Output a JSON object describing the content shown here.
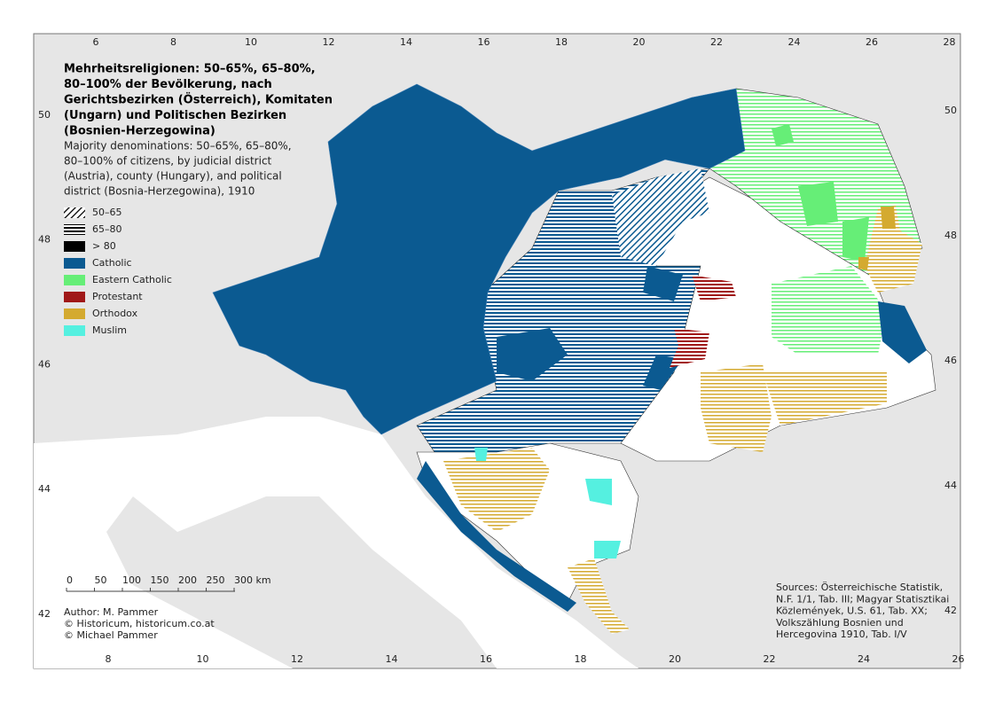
{
  "map": {
    "title_lines": [
      "Mehrheitsreligionen: 50–65%, 65–80%,",
      "80–100% der Bevölkerung, nach",
      "Gerichtsbezirken (Österreich), Komitaten",
      "(Ungarn) und Politischen Bezirken",
      "(Bosnien-Herzegowina)"
    ],
    "subtitle_lines": [
      "Majority denominations: 50–65%, 65–80%,",
      "80–100% of citizens, by judicial district",
      "(Austria), county (Hungary), and political",
      "district (Bosnia-Herzegowina), 1910"
    ],
    "legend": [
      "50–65",
      "65–80",
      "> 80",
      "Catholic",
      "Eastern Catholic",
      "Protestant",
      "Orthodox",
      "Muslim"
    ],
    "top_labels": [
      "6",
      "8",
      "10",
      "12",
      "14",
      "16",
      "18",
      "20",
      "22",
      "24",
      "26",
      "28"
    ],
    "bottom_labels": [
      "8",
      "10",
      "12",
      "14",
      "16",
      "18",
      "20",
      "22",
      "24",
      "26"
    ],
    "left_labels": [
      "50",
      "48",
      "46",
      "44",
      "42"
    ],
    "right_labels": [
      "50",
      "48",
      "46",
      "44",
      "42"
    ],
    "scale_labels": [
      "0",
      "50",
      "100",
      "150",
      "200",
      "250",
      "300 km"
    ],
    "author_lines": [
      "Author: M. Pammer",
      "© Historicum, historicum.co.at",
      "© Michael Pammer"
    ],
    "source_lines": [
      "Sources: Österreichische Statistik,",
      "N.F. 1/1, Tab. III; Magyar Statisztikai",
      "Közlemények, U.S. 61, Tab. XX;",
      "Volkszählung Bosnien und",
      "Hercegovina 1910, Tab. I/V"
    ]
  }
}
